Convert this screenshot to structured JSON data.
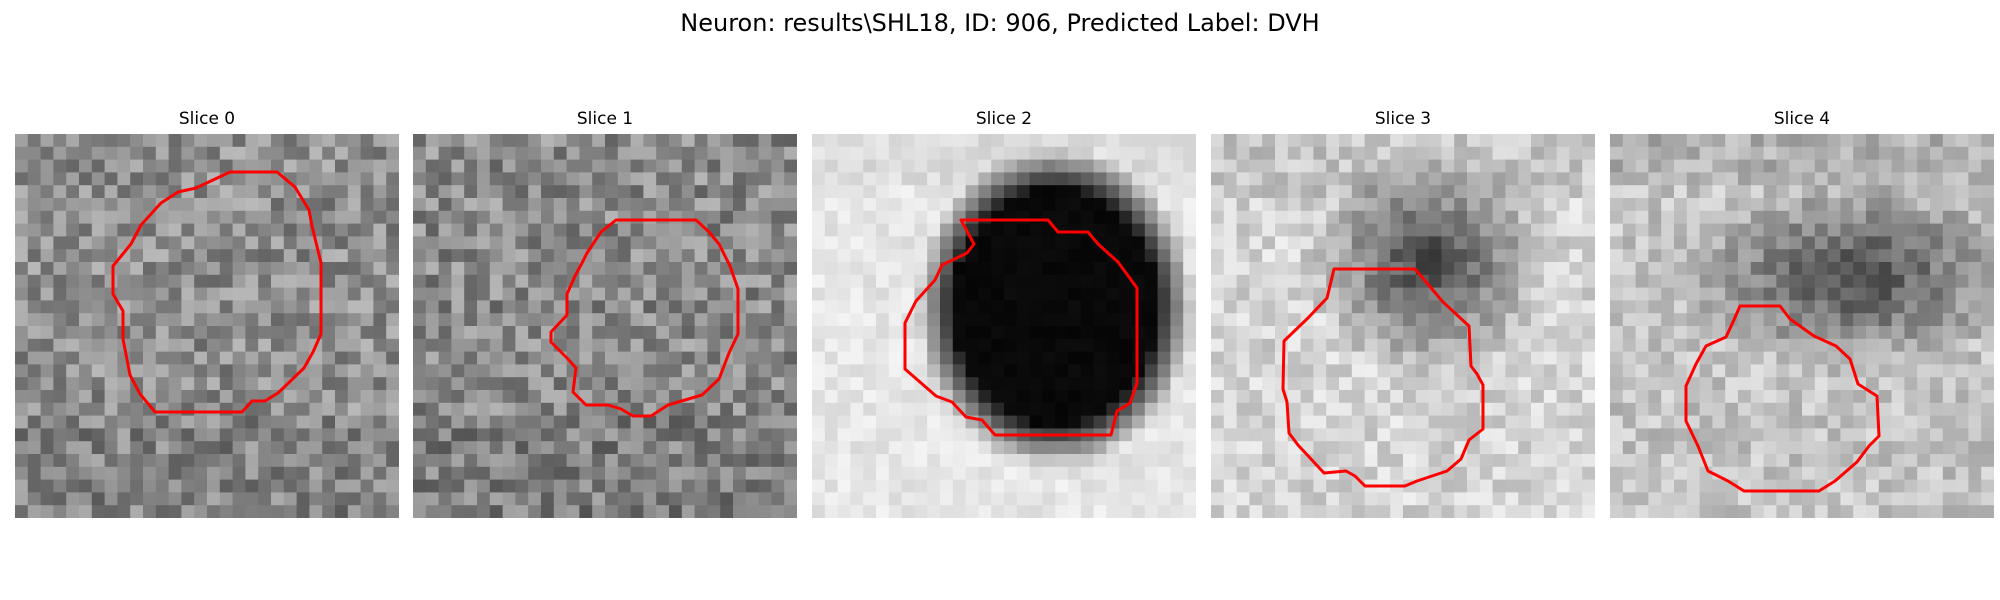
{
  "figure": {
    "title": "Neuron: results\\SHL18, ID: 906, Predicted Label: DVH",
    "contour_color": "#ff0000",
    "colormap": "grayscale",
    "grid_size": 30
  },
  "slices": [
    {
      "title": "Slice 0",
      "background": "#8f8f8f",
      "noise": 42,
      "dark_blob": null
    },
    {
      "title": "Slice 1",
      "background": "#8a8a8a",
      "noise": 44,
      "dark_blob": null
    },
    {
      "title": "Slice 2",
      "background": "#e6e6e6",
      "noise": 14,
      "dark_blob": "solid-black"
    },
    {
      "title": "Slice 3",
      "background": "#d4d4d4",
      "noise": 28,
      "dark_blob": "diffuse-dark"
    },
    {
      "title": "Slice 4",
      "background": "#c4c4c4",
      "noise": 30,
      "dark_blob": "diffuse-band"
    }
  ]
}
